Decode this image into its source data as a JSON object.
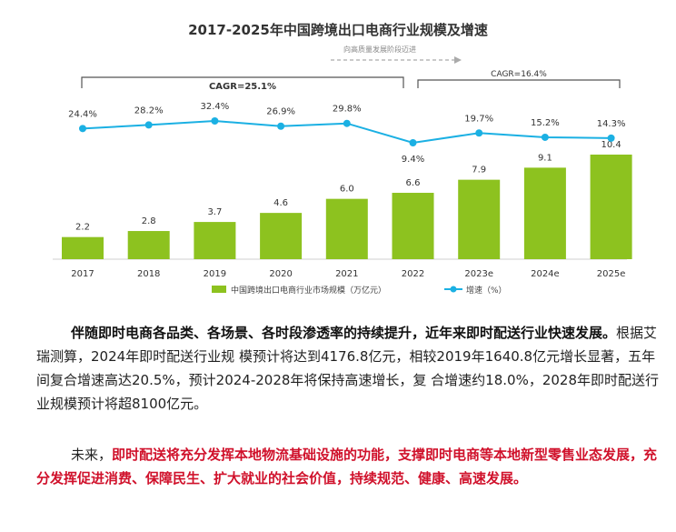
{
  "chart_data": {
    "type": "bar+line",
    "title": "2017-2025年中国跨境出口电商行业规模及增速",
    "categories": [
      "2017",
      "2018",
      "2019",
      "2020",
      "2021",
      "2022",
      "2023e",
      "2024e",
      "2025e"
    ],
    "series": [
      {
        "name": "中国跨境出口电商行业市场规模（万亿元）",
        "type": "bar",
        "values": [
          2.2,
          2.8,
          3.7,
          4.6,
          6.0,
          6.6,
          7.9,
          9.1,
          10.4
        ]
      },
      {
        "name": "增速（%）",
        "type": "line",
        "values": [
          24.4,
          28.2,
          32.4,
          26.9,
          29.8,
          9.4,
          19.7,
          15.2,
          14.3
        ],
        "labels": [
          "24.4%",
          "28.2%",
          "32.4%",
          "26.9%",
          "29.8%",
          "9.4%",
          "19.7%",
          "15.2%",
          "14.3%"
        ]
      }
    ],
    "annotations": {
      "cagr1": "CAGR=25.1%",
      "cagr2": "CAGR=16.4%",
      "phase": "向高质量发展阶段迈进"
    },
    "colors": {
      "bar": "#8dc21f",
      "line": "#1bb0e3",
      "bracket": "#555555"
    },
    "grid": false,
    "legend_position": "bottom"
  },
  "text": {
    "p1_bold": "伴随即时电商各品类、各场景、各时段渗透率的持续提升，近年来即时配送行业快速发展。",
    "p1_rest": "根据艾瑞测算，2024年即时配送行业规 模预计将达到4176.8亿元，相较2019年1640.8亿元增长显著，五年间复合增速高达20.5%，预计2024-2028年将保持高速增长，复 合增速约18.0%，2028年即时配送行业规模预计将超8100亿元。",
    "p2_intro": "未来，",
    "p2_red": "即时配送将充分发挥本地物流基础设施的功能，支撑即时电商等本地新型零售业态发展，充分发挥促进消费、保障民生、扩大就业的社会价值，持续规范、健康、高速发展。"
  }
}
